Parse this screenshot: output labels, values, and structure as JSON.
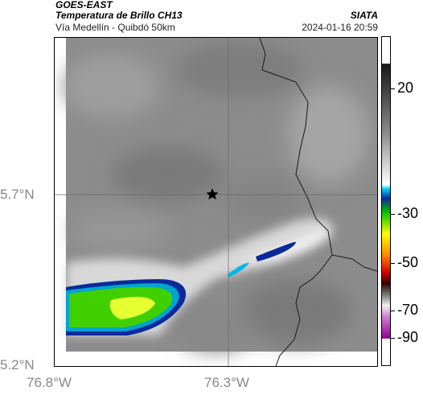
{
  "header": {
    "satellite": "GOES-EAST",
    "product": "Temperatura de Brillo CH13",
    "region": "Vía Medellín - Quibdó 50km",
    "agency": "SIATA",
    "datetime": "2024-01-16 20:59"
  },
  "axes": {
    "lat_ticks": [
      {
        "label": "5.7°N",
        "value": 5.7
      },
      {
        "label": "5.2°N",
        "value": 5.2
      }
    ],
    "lon_ticks": [
      {
        "label": "76.8°W",
        "value": -76.8
      },
      {
        "label": "76.3°W",
        "value": -76.3
      }
    ]
  },
  "colorbar": {
    "ticks": [
      {
        "label": "20",
        "value": 20
      },
      {
        "label": "-30",
        "value": -30
      },
      {
        "label": "-50",
        "value": -50
      },
      {
        "label": "-70",
        "value": -70
      },
      {
        "label": "-90",
        "value": -90
      }
    ],
    "colors": {
      "warm_top": "#202020",
      "warm_mid": "#9a9a9a",
      "cold_white": "#ffffff",
      "cyan": "#00b8e6",
      "blue": "#0033a0",
      "green": "#00c000",
      "yellow": "#ffff00",
      "red": "#e00000",
      "magenta": "#a020a0"
    }
  },
  "map": {
    "marker": "star-icon",
    "colors": {
      "background": "#8c8c8c",
      "border_line": "#1a1a1a",
      "cloud_light": "#e6e6e6",
      "cloud_green": "#40d000",
      "cloud_yellow": "#e6ff30"
    }
  }
}
